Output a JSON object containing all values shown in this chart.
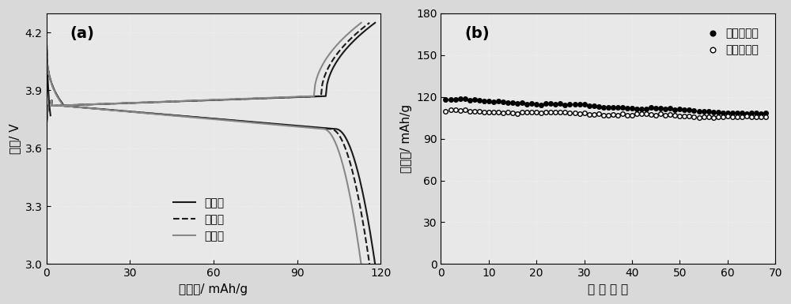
{
  "panel_a": {
    "title": "(a)",
    "xlabel": "比容量/ mAh/g",
    "ylabel": "电压/ V",
    "xlim": [
      0,
      120
    ],
    "ylim": [
      3.0,
      4.3
    ],
    "xticks": [
      0,
      30,
      60,
      90,
      120
    ],
    "yticks": [
      3.0,
      3.3,
      3.6,
      3.9,
      4.2
    ],
    "legend": [
      "第一次",
      "第二次",
      "第三次"
    ],
    "cycles": [
      {
        "cap": 118,
        "color": "#1a1a1a",
        "ls": "-",
        "lw": 1.5
      },
      {
        "cap": 116,
        "color": "#1a1a1a",
        "ls": "--",
        "lw": 1.5
      },
      {
        "cap": 113,
        "color": "#888888",
        "ls": "-",
        "lw": 1.5
      }
    ]
  },
  "panel_b": {
    "title": "(b)",
    "xlabel": "循 环 次 数",
    "ylabel": "比容量/ mAh/g",
    "xlim": [
      0,
      70
    ],
    "ylim": [
      0,
      180
    ],
    "xticks": [
      0,
      10,
      20,
      30,
      40,
      50,
      60,
      70
    ],
    "yticks": [
      0,
      30,
      60,
      90,
      120,
      150,
      180
    ],
    "legend_charge": "充电比容量",
    "legend_discharge": "放电比容量",
    "charge_start": 118,
    "charge_end": 108,
    "discharge_start": 110,
    "discharge_end": 105,
    "n_cycles": 68
  },
  "background_color": "#d9d9d9",
  "plot_bg_color": "#e8e8e8"
}
